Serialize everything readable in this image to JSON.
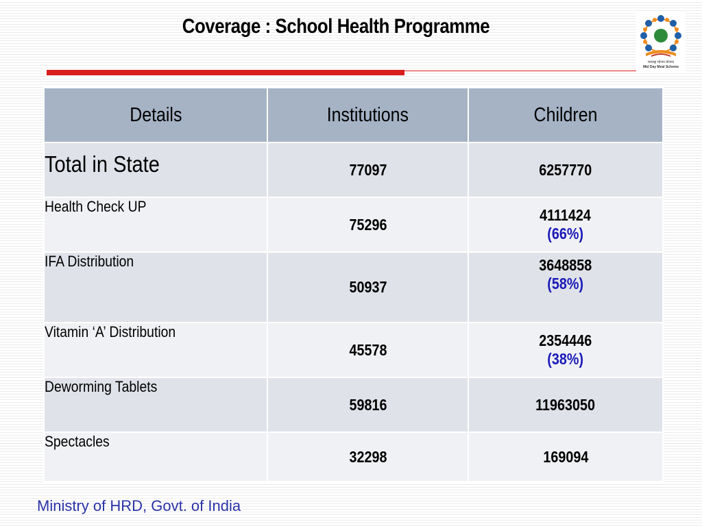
{
  "title": "Coverage : School Health Programme",
  "logo": {
    "label": "मध्याह्न भोजन योजना",
    "sublabel": "Mid Day Meal Scheme"
  },
  "table": {
    "headers": [
      "Details",
      "Institutions",
      "Children"
    ],
    "rows": [
      {
        "details": "Total in State",
        "institutions": "77097",
        "children": "6257770",
        "percent": ""
      },
      {
        "details": "Health Check UP",
        "institutions": "75296",
        "children": "4111424",
        "percent": "(66%)"
      },
      {
        "details": "IFA Distribution",
        "institutions": "50937",
        "children": "3648858",
        "percent": "(58%)"
      },
      {
        "details": "Vitamin ‘A’ Distribution",
        "institutions": "45578",
        "children": "2354446",
        "percent": "(38%)"
      },
      {
        "details": "Deworming Tablets",
        "institutions": "59816",
        "children": "11963050",
        "percent": ""
      },
      {
        "details": "Spectacles",
        "institutions": "32298",
        "children": "169094",
        "percent": ""
      }
    ]
  },
  "footer": "Ministry of HRD, Govt. of India",
  "colors": {
    "header_bg": "#a5b3c5",
    "row_dark": "#dfe2e8",
    "row_light": "#f0f1f4",
    "accent_red": "#d81e1e",
    "percent_blue": "#1a1ab8",
    "footer_blue": "#2a33a6"
  }
}
